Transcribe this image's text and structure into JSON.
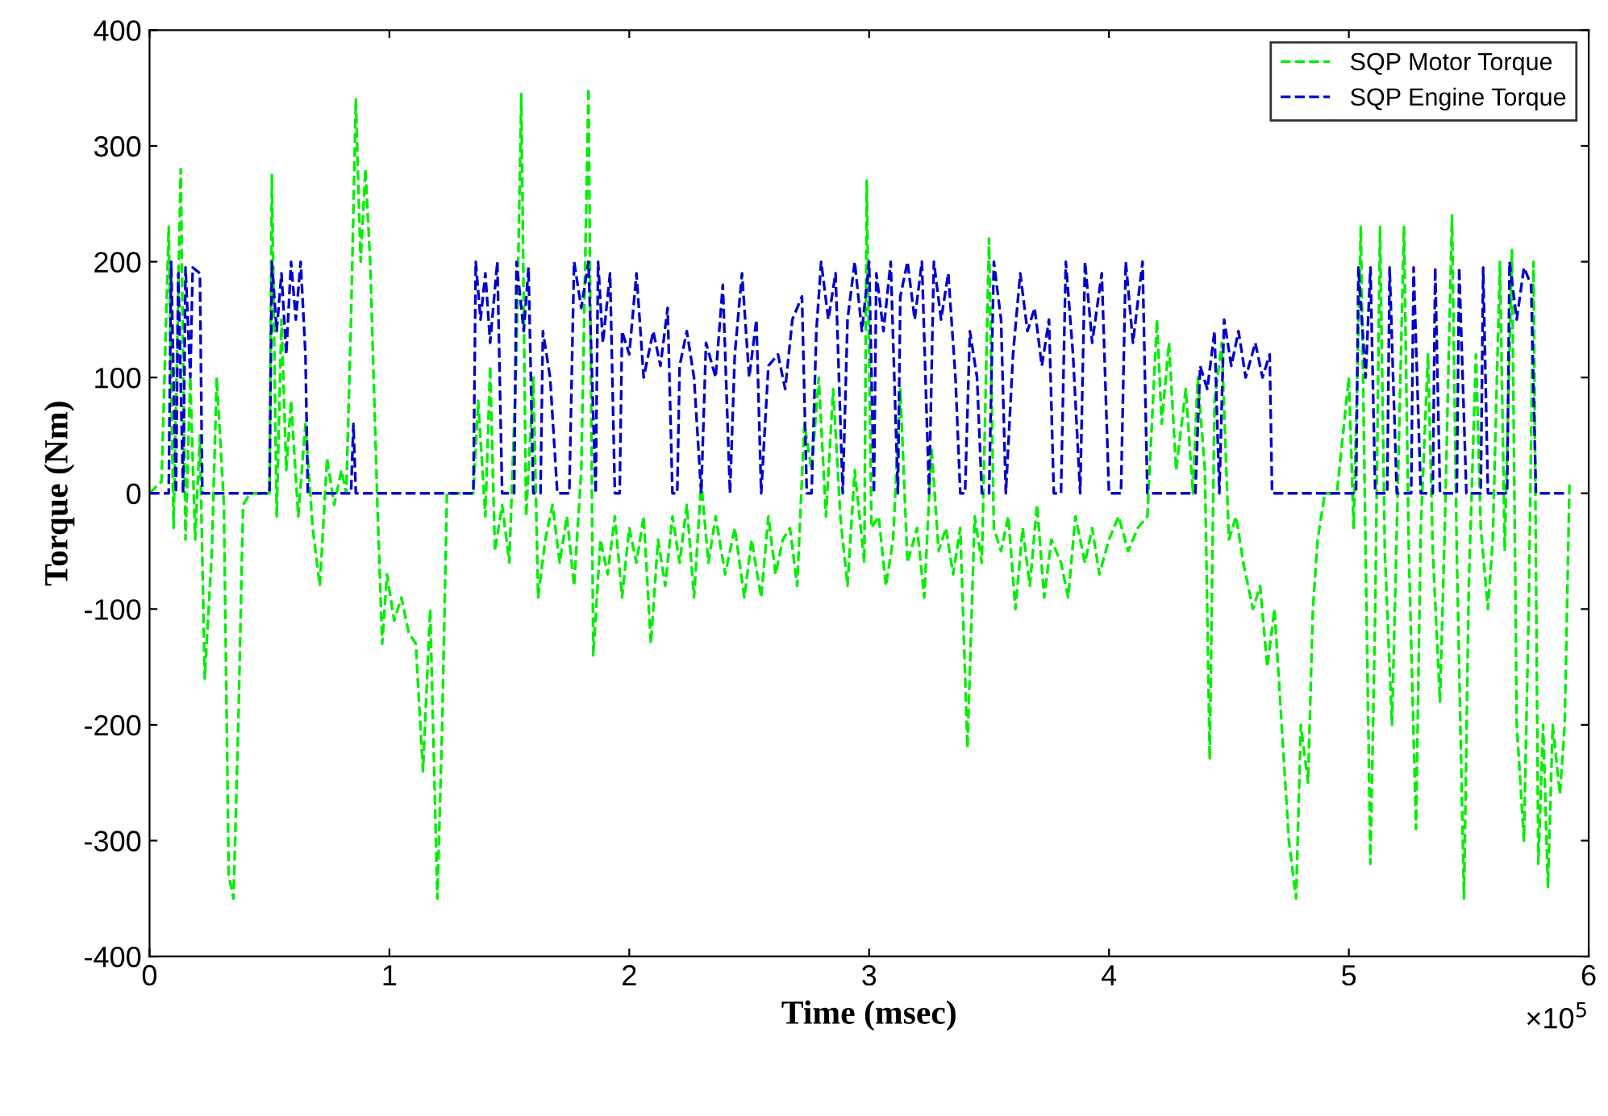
{
  "chart_data": {
    "type": "line",
    "xlabel": "Time (msec)",
    "ylabel": "Torque (Nm)",
    "xlim": [
      0,
      6
    ],
    "ylim": [
      -400,
      400
    ],
    "xticks": [
      0,
      1,
      2,
      3,
      4,
      5,
      6
    ],
    "yticks": [
      -400,
      -300,
      -200,
      -100,
      0,
      100,
      200,
      300,
      400
    ],
    "grid": false,
    "legend": "top right",
    "line_style": "dashed",
    "marker": "none",
    "annotations": [
      "×10$^{5}$"
    ],
    "series": [
      {
        "name": "SQP Motor Torque",
        "color": "#00ee00",
        "x": [
          0,
          0.05,
          0.08,
          0.1,
          0.13,
          0.15,
          0.17,
          0.19,
          0.21,
          0.23,
          0.26,
          0.28,
          0.31,
          0.33,
          0.35,
          0.37,
          0.39,
          0.42,
          0.5,
          0.51,
          0.53,
          0.55,
          0.57,
          0.59,
          0.62,
          0.65,
          0.68,
          0.71,
          0.74,
          0.77,
          0.8,
          0.82,
          0.84,
          0.86,
          0.88,
          0.9,
          0.92,
          0.95,
          0.97,
          0.99,
          1.02,
          1.05,
          1.08,
          1.11,
          1.14,
          1.17,
          1.2,
          1.22,
          1.24,
          1.3,
          1.35,
          1.37,
          1.4,
          1.42,
          1.44,
          1.47,
          1.5,
          1.53,
          1.55,
          1.57,
          1.6,
          1.62,
          1.65,
          1.68,
          1.71,
          1.74,
          1.77,
          1.8,
          1.83,
          1.85,
          1.88,
          1.91,
          1.94,
          1.97,
          2.0,
          2.03,
          2.06,
          2.09,
          2.12,
          2.15,
          2.18,
          2.21,
          2.24,
          2.27,
          2.3,
          2.33,
          2.36,
          2.4,
          2.44,
          2.48,
          2.51,
          2.55,
          2.58,
          2.61,
          2.64,
          2.67,
          2.7,
          2.73,
          2.76,
          2.79,
          2.82,
          2.85,
          2.88,
          2.91,
          2.94,
          2.98,
          2.99,
          3.01,
          3.04,
          3.07,
          3.1,
          3.13,
          3.16,
          3.2,
          3.23,
          3.26,
          3.29,
          3.32,
          3.35,
          3.38,
          3.41,
          3.44,
          3.47,
          3.5,
          3.52,
          3.55,
          3.58,
          3.61,
          3.64,
          3.67,
          3.7,
          3.73,
          3.76,
          3.8,
          3.83,
          3.86,
          3.9,
          3.93,
          3.96,
          4.0,
          4.04,
          4.08,
          4.12,
          4.16,
          4.2,
          4.22,
          4.25,
          4.28,
          4.32,
          4.35,
          4.37,
          4.4,
          4.42,
          4.44,
          4.47,
          4.5,
          4.53,
          4.56,
          4.6,
          4.63,
          4.66,
          4.69,
          4.72,
          4.75,
          4.78,
          4.8,
          4.83,
          4.85,
          4.87,
          4.9,
          4.95,
          5.0,
          5.02,
          5.05,
          5.07,
          5.09,
          5.11,
          5.13,
          5.15,
          5.18,
          5.2,
          5.23,
          5.25,
          5.28,
          5.3,
          5.33,
          5.35,
          5.38,
          5.4,
          5.43,
          5.45,
          5.48,
          5.5,
          5.53,
          5.55,
          5.58,
          5.6,
          5.63,
          5.65,
          5.68,
          5.7,
          5.73,
          5.75,
          5.77,
          5.79,
          5.81,
          5.83,
          5.85,
          5.88,
          5.9,
          5.92
        ],
        "values": [
          0,
          10,
          230,
          -30,
          280,
          -40,
          100,
          -40,
          50,
          -160,
          -50,
          100,
          -10,
          -330,
          -350,
          -200,
          -10,
          0,
          0,
          275,
          -20,
          150,
          20,
          80,
          -20,
          60,
          -30,
          -80,
          30,
          -10,
          20,
          0,
          150,
          340,
          200,
          280,
          200,
          -10,
          -130,
          -70,
          -110,
          -90,
          -120,
          -130,
          -240,
          -100,
          -350,
          -200,
          0,
          0,
          0,
          80,
          -20,
          110,
          -50,
          -10,
          -60,
          120,
          345,
          -20,
          100,
          -90,
          -40,
          -10,
          -60,
          -20,
          -80,
          20,
          350,
          -140,
          -40,
          -70,
          -20,
          -90,
          -30,
          -60,
          -20,
          -130,
          -40,
          -80,
          -20,
          -60,
          -10,
          -90,
          10,
          -60,
          -20,
          -70,
          -30,
          -90,
          -40,
          -90,
          -20,
          -70,
          -40,
          -30,
          -80,
          60,
          20,
          100,
          -20,
          90,
          -20,
          -80,
          20,
          -60,
          270,
          -30,
          -20,
          -80,
          -40,
          90,
          -60,
          -30,
          -90,
          40,
          -50,
          -30,
          -70,
          -30,
          -220,
          -20,
          -60,
          220,
          -30,
          -50,
          -20,
          -100,
          -30,
          -80,
          -10,
          -90,
          -40,
          -60,
          -90,
          -20,
          -60,
          -30,
          -70,
          -40,
          -20,
          -50,
          -30,
          -20,
          150,
          60,
          130,
          20,
          90,
          0,
          100,
          20,
          -230,
          80,
          130,
          -40,
          -20,
          -60,
          -100,
          -80,
          -150,
          -100,
          -200,
          -300,
          -350,
          -200,
          -250,
          -100,
          -40,
          0,
          0,
          100,
          -30,
          230,
          -50,
          -320,
          -100,
          230,
          -50,
          -200,
          -30,
          230,
          -50,
          -290,
          -30,
          120,
          -50,
          -180,
          -30,
          240,
          -50,
          -350,
          -80,
          120,
          -30,
          -100,
          -40,
          200,
          -50,
          210,
          -200,
          -300,
          -100,
          200,
          -320,
          -200,
          -340,
          -200,
          -260,
          -200,
          10
        ]
      },
      {
        "name": "SQP Engine Torque",
        "color": "#0000cc",
        "x": [
          0,
          0.08,
          0.09,
          0.11,
          0.12,
          0.14,
          0.15,
          0.17,
          0.18,
          0.21,
          0.22,
          0.5,
          0.51,
          0.53,
          0.55,
          0.57,
          0.59,
          0.61,
          0.63,
          0.65,
          0.66,
          0.84,
          0.85,
          0.86,
          1.35,
          1.36,
          1.38,
          1.4,
          1.42,
          1.45,
          1.47,
          1.52,
          1.53,
          1.56,
          1.58,
          1.6,
          1.63,
          1.64,
          1.67,
          1.7,
          1.75,
          1.77,
          1.8,
          1.83,
          1.86,
          1.87,
          1.89,
          1.92,
          1.94,
          1.96,
          1.97,
          2.0,
          2.03,
          2.06,
          2.1,
          2.13,
          2.16,
          2.18,
          2.2,
          2.21,
          2.24,
          2.27,
          2.3,
          2.32,
          2.36,
          2.39,
          2.42,
          2.44,
          2.47,
          2.5,
          2.53,
          2.55,
          2.58,
          2.62,
          2.65,
          2.68,
          2.72,
          2.74,
          2.76,
          2.78,
          2.8,
          2.83,
          2.86,
          2.89,
          2.91,
          2.94,
          2.97,
          3.0,
          3.02,
          3.03,
          3.06,
          3.09,
          3.12,
          3.13,
          3.16,
          3.19,
          3.22,
          3.25,
          3.27,
          3.3,
          3.33,
          3.36,
          3.38,
          3.4,
          3.42,
          3.45,
          3.47,
          3.5,
          3.52,
          3.55,
          3.57,
          3.6,
          3.63,
          3.66,
          3.69,
          3.72,
          3.75,
          3.77,
          3.8,
          3.82,
          3.85,
          3.88,
          3.9,
          3.93,
          3.97,
          4.0,
          4.05,
          4.07,
          4.1,
          4.14,
          4.16,
          4.36,
          4.38,
          4.41,
          4.44,
          4.46,
          4.48,
          4.51,
          4.54,
          4.57,
          4.61,
          4.64,
          4.67,
          4.68,
          5.03,
          5.04,
          5.07,
          5.09,
          5.11,
          5.16,
          5.17,
          5.2,
          5.26,
          5.27,
          5.3,
          5.35,
          5.36,
          5.38,
          5.45,
          5.46,
          5.49,
          5.55,
          5.56,
          5.58,
          5.66,
          5.67,
          5.7,
          5.73,
          5.76,
          5.78,
          5.9
        ],
        "values": [
          0,
          0,
          200,
          0,
          190,
          0,
          195,
          100,
          195,
          190,
          0,
          0,
          200,
          140,
          190,
          120,
          200,
          150,
          200,
          120,
          0,
          0,
          60,
          0,
          0,
          200,
          150,
          190,
          130,
          200,
          0,
          0,
          200,
          140,
          195,
          0,
          0,
          140,
          100,
          0,
          0,
          200,
          160,
          200,
          0,
          200,
          130,
          190,
          0,
          0,
          140,
          120,
          190,
          100,
          140,
          110,
          160,
          0,
          0,
          110,
          140,
          100,
          0,
          130,
          100,
          180,
          0,
          120,
          190,
          100,
          150,
          0,
          110,
          120,
          90,
          150,
          170,
          0,
          0,
          140,
          200,
          150,
          190,
          0,
          150,
          200,
          140,
          200,
          0,
          190,
          140,
          200,
          0,
          170,
          200,
          150,
          200,
          0,
          200,
          150,
          190,
          100,
          0,
          0,
          140,
          100,
          0,
          0,
          200,
          150,
          0,
          120,
          190,
          140,
          160,
          110,
          150,
          0,
          0,
          200,
          120,
          0,
          200,
          130,
          190,
          0,
          0,
          200,
          130,
          200,
          0,
          0,
          110,
          90,
          140,
          0,
          150,
          110,
          140,
          100,
          130,
          100,
          120,
          0,
          0,
          195,
          100,
          195,
          0,
          0,
          195,
          0,
          0,
          195,
          0,
          0,
          195,
          0,
          0,
          195,
          0,
          0,
          195,
          0,
          0,
          200,
          150,
          195,
          180,
          0,
          0
        ]
      }
    ]
  }
}
